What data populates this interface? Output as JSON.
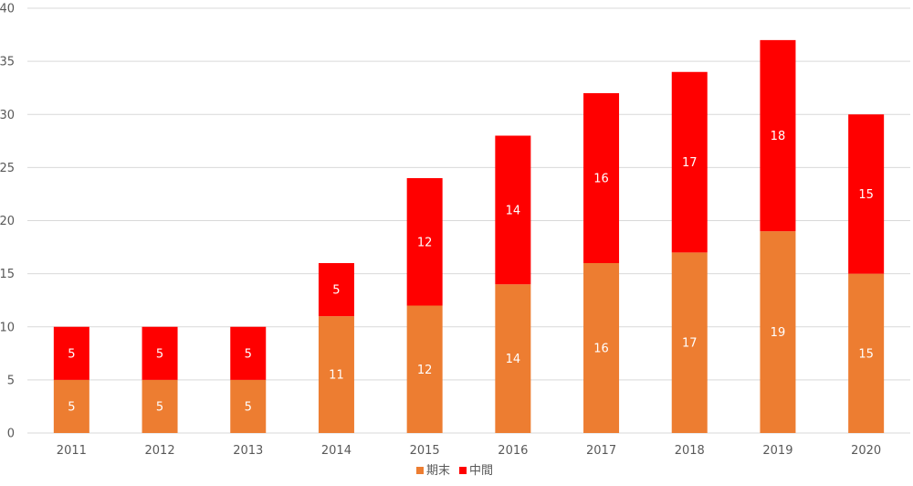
{
  "chart_data": {
    "type": "bar",
    "stacked": true,
    "categories": [
      "2011",
      "2012",
      "2013",
      "2014",
      "2015",
      "2016",
      "2017",
      "2018",
      "2019",
      "2020"
    ],
    "series": [
      {
        "name": "期末",
        "color": "#ED7D31",
        "values": [
          5,
          5,
          5,
          11,
          12,
          14,
          16,
          17,
          19,
          15
        ]
      },
      {
        "name": "中間",
        "color": "#FF0000",
        "values": [
          5,
          5,
          5,
          5,
          12,
          14,
          16,
          17,
          18,
          15
        ]
      }
    ],
    "ylim": [
      0,
      40
    ],
    "yticks": [
      0,
      5,
      10,
      15,
      20,
      25,
      30,
      35,
      40
    ],
    "grid": true,
    "legend_position": "bottom",
    "data_labels": true
  }
}
